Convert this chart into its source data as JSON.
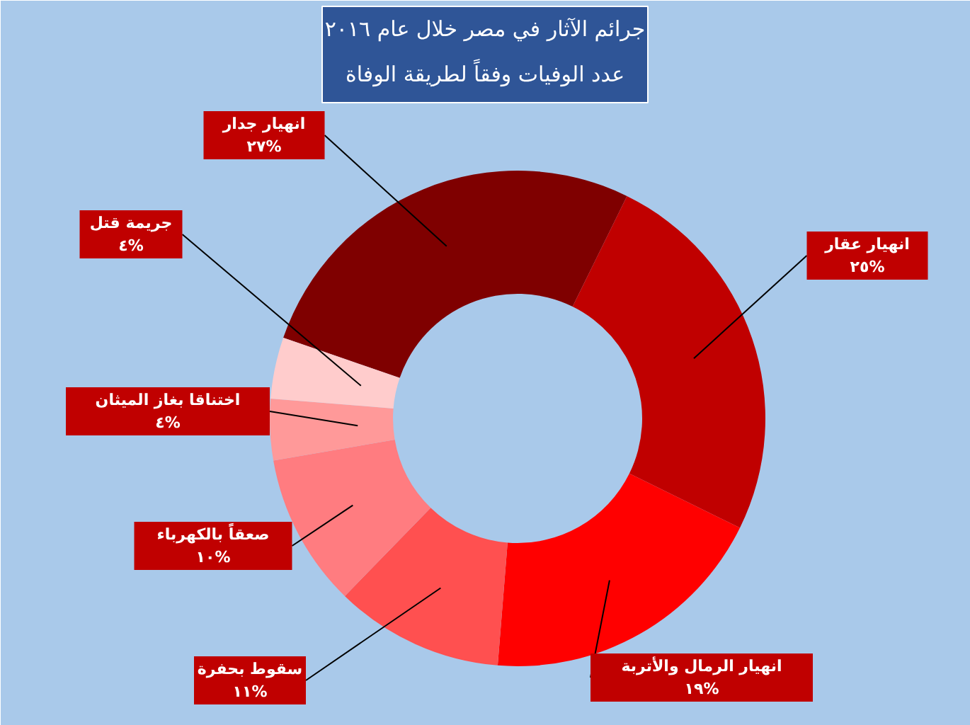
{
  "chart_data": {
    "type": "donut",
    "title": "جرائم الآثار في مصر خلال عام ٢٠١٦",
    "subtitle": "عدد الوفيات وفقاً لطريقة الوفاة",
    "categories": [
      "انهيار جدار",
      "انهيار عقار",
      "انهيار الرمال والأتربة",
      "سقوط بحفرة",
      "صعقاً بالكهرباء",
      "اختناقا بغاز الميثان",
      "جريمة قتل"
    ],
    "values": [
      27,
      25,
      19,
      11,
      10,
      4,
      4
    ],
    "colors": [
      "#7f0000",
      "#c00000",
      "#ff0000",
      "#ff5050",
      "#ff7c80",
      "#ff9999",
      "#ffcccc"
    ],
    "value_labels": [
      "٢٧%",
      "٢٥%",
      "١٩%",
      "١١%",
      "١٠%",
      "٤%",
      "٤%"
    ]
  }
}
